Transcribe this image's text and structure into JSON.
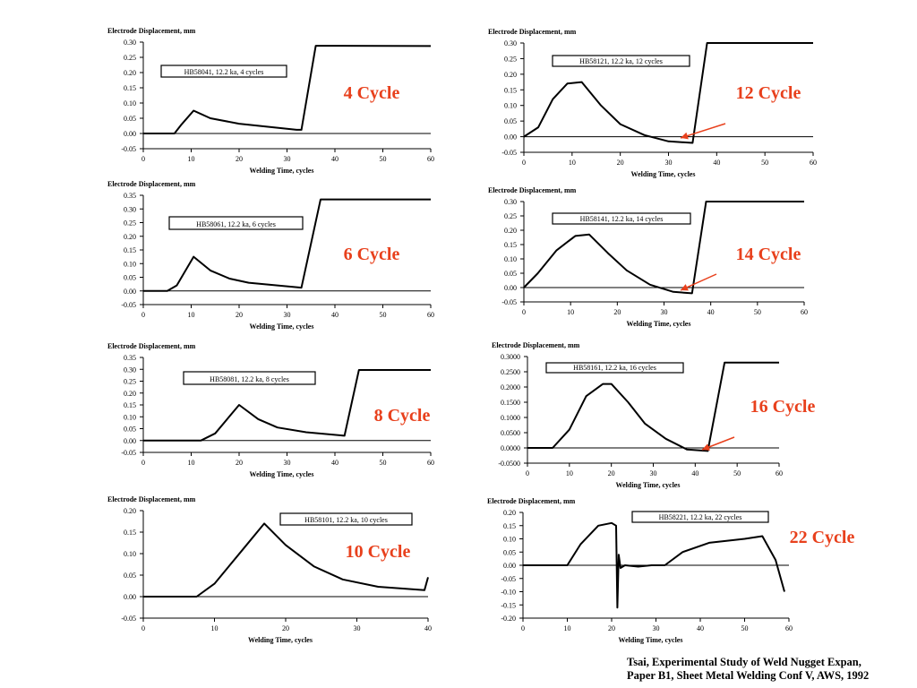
{
  "label_color": "#e8401c",
  "chart_data": [
    {
      "type": "line",
      "ylabel": "Electrode Displacement, mm",
      "xlabel": "Welding Time, cycles",
      "legend": "HB58041, 12.2 ka, 4 cycles",
      "callout": "4 Cycle",
      "xlim": [
        0,
        60
      ],
      "ylim": [
        -0.05,
        0.3
      ],
      "xticks": [
        0,
        10,
        20,
        30,
        40,
        50,
        60
      ],
      "yticks": [
        "-0.05",
        "0.00",
        "0.05",
        "0.10",
        "0.15",
        "0.20",
        "0.25",
        "0.30"
      ],
      "x": [
        0,
        6.5,
        8,
        10.5,
        14,
        20,
        26,
        32,
        33,
        36,
        60
      ],
      "y": [
        0,
        0,
        0.03,
        0.075,
        0.05,
        0.032,
        0.022,
        0.012,
        0.012,
        0.288,
        0.287
      ]
    },
    {
      "type": "line",
      "ylabel": "Electrode Displacement, mm",
      "xlabel": "Welding Time, cycles",
      "legend": "HB58061, 12.2 ka, 6 cycles",
      "callout": "6 Cycle",
      "xlim": [
        0,
        60
      ],
      "ylim": [
        -0.05,
        0.35
      ],
      "xticks": [
        0,
        10,
        20,
        30,
        40,
        50,
        60
      ],
      "yticks": [
        "-0.05",
        "0.00",
        "0.05",
        "0.10",
        "0.15",
        "0.20",
        "0.25",
        "0.30",
        "0.35"
      ],
      "x": [
        0,
        5,
        7,
        10.5,
        14,
        18,
        22,
        28,
        33,
        37,
        60
      ],
      "y": [
        0,
        0,
        0.02,
        0.125,
        0.075,
        0.045,
        0.03,
        0.02,
        0.012,
        0.335,
        0.335
      ]
    },
    {
      "type": "line",
      "ylabel": "Electrode Displacement, mm",
      "xlabel": "Welding Time, cycles",
      "legend": "HB58081, 12.2 ka, 8 cycles",
      "callout": "8 Cycle",
      "xlim": [
        0,
        60
      ],
      "ylim": [
        -0.05,
        0.35
      ],
      "xticks": [
        0,
        10,
        20,
        30,
        40,
        50,
        60
      ],
      "yticks": [
        "-0.05",
        "0.00",
        "0.05",
        "0.10",
        "0.15",
        "0.20",
        "0.25",
        "0.30",
        "0.35"
      ],
      "x": [
        0,
        12,
        15,
        20,
        24,
        28,
        34,
        42,
        45,
        60
      ],
      "y": [
        0,
        0,
        0.03,
        0.15,
        0.09,
        0.055,
        0.035,
        0.02,
        0.297,
        0.297
      ]
    },
    {
      "type": "line",
      "ylabel": "Electrode Displacement, mm",
      "xlabel": "Welding Time, cycles",
      "legend": "HB58101, 12.2 ka, 10 cycles",
      "callout": "10 Cycle",
      "xlim": [
        0,
        40
      ],
      "ylim": [
        -0.05,
        0.2
      ],
      "xticks": [
        0,
        10,
        20,
        30,
        40
      ],
      "yticks": [
        "-0.05",
        "0.00",
        "0.05",
        "0.10",
        "0.15",
        "0.20"
      ],
      "x": [
        0,
        7.5,
        10,
        14,
        17,
        20,
        24,
        28,
        33,
        39.5,
        40
      ],
      "y": [
        0,
        0,
        0.03,
        0.11,
        0.17,
        0.12,
        0.07,
        0.04,
        0.023,
        0.015,
        0.045
      ]
    },
    {
      "type": "line",
      "ylabel": "Electrode Displacement, mm",
      "xlabel": "Welding Time, cycles",
      "legend": "HB58121, 12.2 ka, 12 cycles",
      "callout": "12 Cycle",
      "xlim": [
        0,
        60
      ],
      "ylim": [
        -0.05,
        0.3
      ],
      "xticks": [
        0,
        10,
        20,
        30,
        40,
        50,
        60
      ],
      "yticks": [
        "-0.05",
        "0.00",
        "0.05",
        "0.10",
        "0.15",
        "0.20",
        "0.25",
        "0.30"
      ],
      "x": [
        0,
        3,
        6,
        9,
        12,
        16,
        20,
        25,
        30,
        35,
        38,
        60
      ],
      "y": [
        0,
        0.03,
        0.12,
        0.17,
        0.175,
        0.1,
        0.04,
        0.005,
        -0.015,
        -0.02,
        0.3,
        0.3
      ]
    },
    {
      "type": "line",
      "ylabel": "Electrode Displacement, mm",
      "xlabel": "Welding Time, cycles",
      "legend": "HB58141, 12.2 ka, 14 cycles",
      "callout": "14 Cycle",
      "xlim": [
        0,
        60
      ],
      "ylim": [
        -0.05,
        0.3
      ],
      "xticks": [
        0,
        10,
        20,
        30,
        40,
        50,
        60
      ],
      "yticks": [
        "-0.05",
        "0.00",
        "0.05",
        "0.10",
        "0.15",
        "0.20",
        "0.25",
        "0.30"
      ],
      "x": [
        0,
        3,
        7,
        11,
        14,
        18,
        22,
        27,
        32,
        36,
        39,
        60
      ],
      "y": [
        0,
        0.05,
        0.13,
        0.18,
        0.185,
        0.12,
        0.06,
        0.01,
        -0.015,
        -0.02,
        0.3,
        0.3
      ]
    },
    {
      "type": "line",
      "ylabel": "Electrode Displacement, mm",
      "xlabel": "Welding Time, cycles",
      "legend": "HB58161, 12.2 ka, 16 cycles",
      "callout": "16 Cycle",
      "xlim": [
        0,
        60
      ],
      "ylim": [
        -0.05,
        0.3
      ],
      "xticks": [
        0,
        10,
        20,
        30,
        40,
        50,
        60
      ],
      "yticks": [
        "-0.0500",
        "0.0000",
        "0.0500",
        "0.1000",
        "0.1500",
        "0.2000",
        "0.2500",
        "0.3000"
      ],
      "x": [
        0,
        6,
        10,
        14,
        18,
        20,
        24,
        28,
        33,
        38,
        43,
        47,
        60
      ],
      "y": [
        0,
        0,
        0.06,
        0.17,
        0.21,
        0.21,
        0.15,
        0.08,
        0.03,
        -0.005,
        -0.01,
        0.28,
        0.28
      ]
    },
    {
      "type": "line",
      "ylabel": "Electrode Displacement, mm",
      "xlabel": "Welding Time, cycles",
      "legend": "HB58221, 12.2 ka, 22 cycles",
      "callout": "22 Cycle",
      "xlim": [
        0,
        60
      ],
      "ylim": [
        -0.2,
        0.2
      ],
      "xticks": [
        0,
        10,
        20,
        30,
        40,
        50,
        60
      ],
      "yticks": [
        "-0.20",
        "-0.15",
        "-0.10",
        "-0.05",
        "0.00",
        "0.05",
        "0.10",
        "0.15",
        "0.20"
      ],
      "x": [
        0,
        10,
        13,
        17,
        20,
        21,
        21.3,
        21.6,
        22,
        23,
        26,
        29,
        32,
        36,
        42,
        50,
        54,
        57,
        59
      ],
      "y": [
        0,
        0,
        0.08,
        0.15,
        0.16,
        0.15,
        -0.16,
        0.04,
        -0.01,
        0.0,
        -0.005,
        0.0,
        0.0,
        0.05,
        0.085,
        0.1,
        0.11,
        0.02,
        -0.1
      ]
    }
  ],
  "citation": {
    "line1": "Tsai, Experimental Study of Weld Nugget Expan,",
    "line2": "Paper B1, Sheet Metal Welding Conf V, AWS, 1992"
  }
}
